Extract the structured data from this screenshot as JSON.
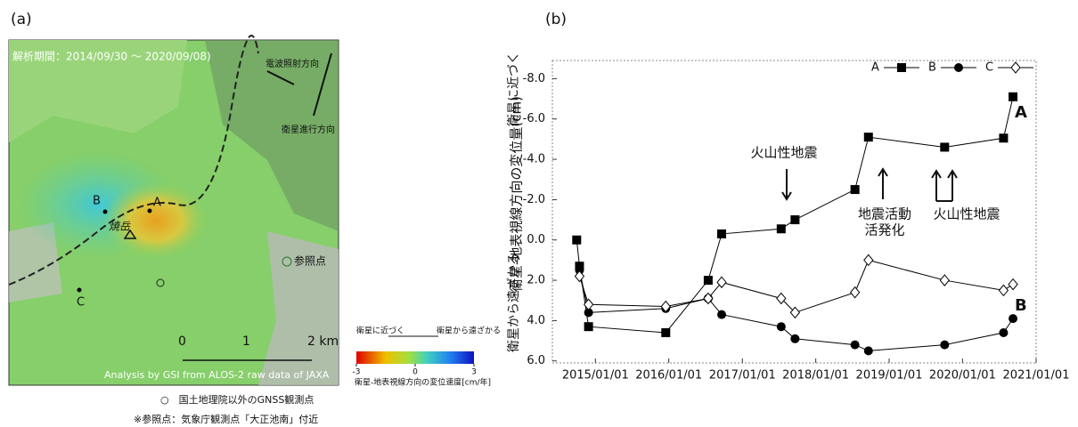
{
  "panels": [
    "(a)",
    "(b)"
  ],
  "map": {
    "period": "解析期間：2014/09/30 ～ 2020/09/08)",
    "radar_direction": "電波照射方向",
    "flight_direction": "衛星進行方向",
    "points": [
      "A",
      "B",
      "C"
    ],
    "peak": "焼岳",
    "reference": "参照点",
    "scale_labels": [
      "0",
      "1",
      "2 km"
    ],
    "credit": "Analysis by GSI from ALOS-2 raw data of JAXA",
    "colorbar": {
      "near": "衛星に近づく",
      "far": "衛星から遠ざかる",
      "lim": [
        -3,
        3
      ],
      "ticks": [
        -3,
        0,
        3
      ],
      "label": "衛星-地表視線方向の変位速度[cm/年]"
    },
    "notes": [
      "○　国土地理院以外のGNSS観測点",
      "※参照点：気象庁観測点「大正池南」付近"
    ]
  },
  "chart_data": {
    "type": "line",
    "y_label": "衛星-地表視線方向の変位量(cm)",
    "y_label_top": "衛星に近づく",
    "y_label_bottom": "衛星から遠ざかる",
    "x": [
      "2014-09-30",
      "2014-10-14",
      "2014-11-28",
      "2015-12-17",
      "2016-07-15",
      "2016-09-20",
      "2017-07-13",
      "2017-09-20",
      "2018-07-15",
      "2018-09-20",
      "2019-10-04",
      "2020-07-23",
      "2020-09-08"
    ],
    "xlim": [
      "2014-06-01",
      "2021-01-01"
    ],
    "xticks": [
      {
        "value": "2015-01-01",
        "label": "2015/01/01"
      },
      {
        "value": "2016-01-01",
        "label": "2016/01/01"
      },
      {
        "value": "2017-01-01",
        "label": "2017/01/01"
      },
      {
        "value": "2018-01-01",
        "label": "2018/01/01"
      },
      {
        "value": "2019-01-01",
        "label": "2019/01/01"
      },
      {
        "value": "2020-01-01",
        "label": "2020/01/01"
      },
      {
        "value": "2021-01-01",
        "label": "2021/01/01"
      }
    ],
    "ylim": [
      6.1,
      -8.9
    ],
    "yticks": [
      {
        "value": -8,
        "label": "-8.0"
      },
      {
        "value": -6,
        "label": "-6.0"
      },
      {
        "value": -4,
        "label": "-4.0"
      },
      {
        "value": -2,
        "label": "-2.0"
      },
      {
        "value": 0,
        "label": "0.0"
      },
      {
        "value": 2,
        "label": "2.0"
      },
      {
        "value": 4,
        "label": "4.0"
      },
      {
        "value": 6,
        "label": "6.0"
      }
    ],
    "series": [
      {
        "name": "A",
        "marker": "square",
        "color": "#000000",
        "values": [
          0.0,
          1.3,
          4.3,
          4.6,
          2.0,
          -0.3,
          -0.55,
          -1.0,
          -2.5,
          -5.1,
          -4.6,
          -5.05,
          -7.1
        ]
      },
      {
        "name": "B",
        "marker": "circle",
        "color": "#000000",
        "values": [
          null,
          1.5,
          3.6,
          3.4,
          2.9,
          3.7,
          4.3,
          4.9,
          5.2,
          5.5,
          5.2,
          4.6,
          3.9
        ]
      },
      {
        "name": "C",
        "marker": "diamond-open",
        "color": "#000000",
        "values": [
          null,
          1.8,
          3.2,
          3.3,
          2.9,
          2.1,
          2.9,
          3.6,
          2.6,
          1.0,
          2.0,
          2.5,
          2.2
        ]
      }
    ],
    "annotations": [
      "火山性地震",
      "地震活動",
      "活発化",
      "火山性地震"
    ]
  }
}
